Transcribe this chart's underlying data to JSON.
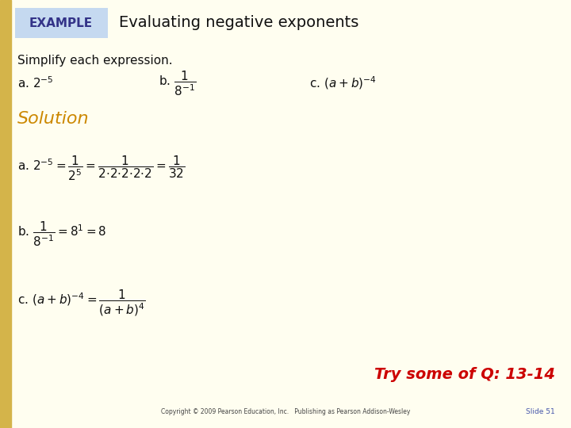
{
  "bg_color": "#fffef0",
  "left_bar_color": "#d4b44a",
  "example_box_color": "#c5d9f0",
  "example_text": "EXAMPLE",
  "example_text_color": "#333388",
  "title_text": "Evaluating negative exponents",
  "title_color": "#111111",
  "simplify_text": "Simplify each expression.",
  "solution_text": "Solution",
  "solution_color": "#cc8800",
  "try_text": "Try some of Q: 13-14",
  "try_color": "#cc0000",
  "copyright_text": "Copyright © 2009 Pearson Education, Inc.   Publishing as Pearson Addison-Wesley",
  "slide_text": "Slide 51",
  "slide_color": "#4455aa"
}
